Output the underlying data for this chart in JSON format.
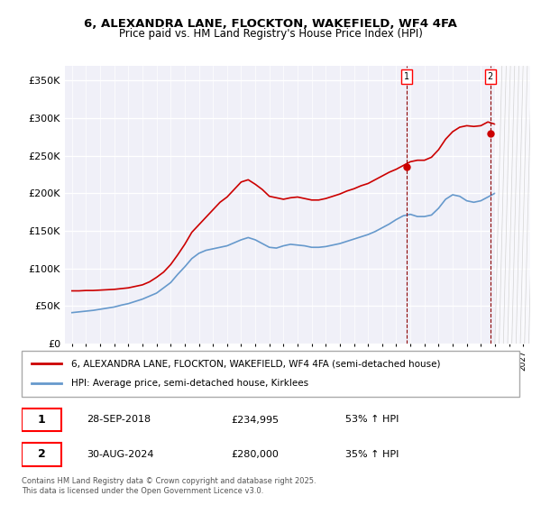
{
  "title": "6, ALEXANDRA LANE, FLOCKTON, WAKEFIELD, WF4 4FA",
  "subtitle": "Price paid vs. HM Land Registry's House Price Index (HPI)",
  "background_color": "#f0f0f8",
  "plot_bg_color": "#f0f0f8",
  "ylabel_ticks": [
    "£0",
    "£50K",
    "£100K",
    "£150K",
    "£200K",
    "£250K",
    "£300K",
    "£350K"
  ],
  "ytick_values": [
    0,
    50000,
    100000,
    150000,
    200000,
    250000,
    300000,
    350000
  ],
  "ylim": [
    0,
    370000
  ],
  "xlim_start": 1994.5,
  "xlim_end": 2027.5,
  "legend_line1": "6, ALEXANDRA LANE, FLOCKTON, WAKEFIELD, WF4 4FA (semi-detached house)",
  "legend_line2": "HPI: Average price, semi-detached house, Kirklees",
  "annotation1_label": "1",
  "annotation1_date": "28-SEP-2018",
  "annotation1_price": "£234,995",
  "annotation1_hpi": "53% ↑ HPI",
  "annotation2_label": "2",
  "annotation2_date": "30-AUG-2024",
  "annotation2_price": "£280,000",
  "annotation2_hpi": "35% ↑ HPI",
  "footer": "Contains HM Land Registry data © Crown copyright and database right 2025.\nThis data is licensed under the Open Government Licence v3.0.",
  "red_color": "#cc0000",
  "blue_color": "#6699cc",
  "marker1_x": 2018.75,
  "marker1_y": 234995,
  "marker2_x": 2024.67,
  "marker2_y": 280000,
  "hpi_years": [
    1995,
    1996,
    1997,
    1998,
    1999,
    2000,
    2001,
    2002,
    2003,
    2004,
    2005,
    2006,
    2007,
    2008,
    2009,
    2010,
    2011,
    2012,
    2013,
    2014,
    2015,
    2016,
    2017,
    2018,
    2019,
    2020,
    2021,
    2022,
    2023,
    2024,
    2025
  ],
  "hpi_values": [
    42000,
    43500,
    45000,
    46500,
    50000,
    54000,
    60000,
    72000,
    90000,
    110000,
    120000,
    128000,
    140000,
    138000,
    128000,
    133000,
    130000,
    128000,
    130000,
    135000,
    140000,
    148000,
    160000,
    175000,
    168000,
    170000,
    185000,
    195000,
    185000,
    205000,
    210000
  ],
  "price_years": [
    1995,
    1996,
    1997,
    1998,
    1999,
    2000,
    2001,
    2002,
    2003,
    2004,
    2005,
    2006,
    2007,
    2008,
    2009,
    2010,
    2011,
    2012,
    2013,
    2014,
    2015,
    2016,
    2017,
    2018,
    2019,
    2020,
    2021,
    2022,
    2023,
    2024,
    2025
  ],
  "price_values": [
    70000,
    70000,
    70000,
    70000,
    72000,
    75000,
    80000,
    90000,
    110000,
    125000,
    155000,
    195000,
    215000,
    210000,
    195000,
    190000,
    195000,
    190000,
    195000,
    200000,
    205000,
    210000,
    220000,
    235000,
    240000,
    245000,
    265000,
    285000,
    290000,
    295000,
    290000
  ]
}
